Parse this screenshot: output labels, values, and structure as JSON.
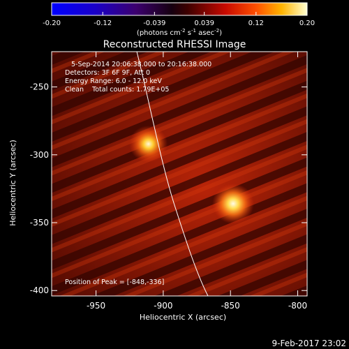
{
  "colorbar": {
    "tick_labels": [
      "-0.20",
      "-0.12",
      "-0.039",
      "0.039",
      "0.12",
      "0.20"
    ],
    "tick_values": [
      -0.2,
      -0.12,
      -0.039,
      0.039,
      0.12,
      0.2
    ],
    "range": [
      -0.2,
      0.2
    ],
    "unit_main": "(photons cm",
    "unit_exp1": "-2",
    "unit_mid": " s",
    "unit_exp2": "-1",
    "unit_tail": " asec",
    "unit_exp3": "-2",
    "unit_close": ")"
  },
  "plot": {
    "title": "Reconstructed RHESSI Image",
    "date_line": "5-Sep-2014 20:06:38.000 to 20:16:38.000",
    "detectors_line": "Detectors: 3F 6F 9F, Att 0",
    "energy_line": "Energy Range: 6.0 - 12.0 keV",
    "clean_line": "Clean    Total counts: 1.79E+05",
    "peak_line": "Position of Peak = [-848,-336]",
    "xlabel": "Heliocentric X (arcsec)",
    "ylabel": "Heliocentric Y (arcsec)",
    "x_ticks": [
      "-950",
      "-900",
      "-850",
      "-800"
    ],
    "y_ticks": [
      "-250",
      "-300",
      "-350",
      "-400"
    ],
    "x_tick_values": [
      -950,
      -900,
      -850,
      -800
    ],
    "y_tick_values": [
      -250,
      -300,
      -350,
      -400
    ],
    "xlim": [
      -983,
      -793
    ],
    "ylim": [
      -404,
      -224
    ],
    "sources": [
      {
        "x": -911,
        "y": -292,
        "strength": 0.75
      },
      {
        "x": -848,
        "y": -336,
        "strength": 1.0
      }
    ]
  },
  "footer": {
    "timestamp": "9-Feb-2017 23:02"
  },
  "colors": {
    "background": "#000000",
    "text": "#ffffff",
    "limb": "#ffffff"
  }
}
